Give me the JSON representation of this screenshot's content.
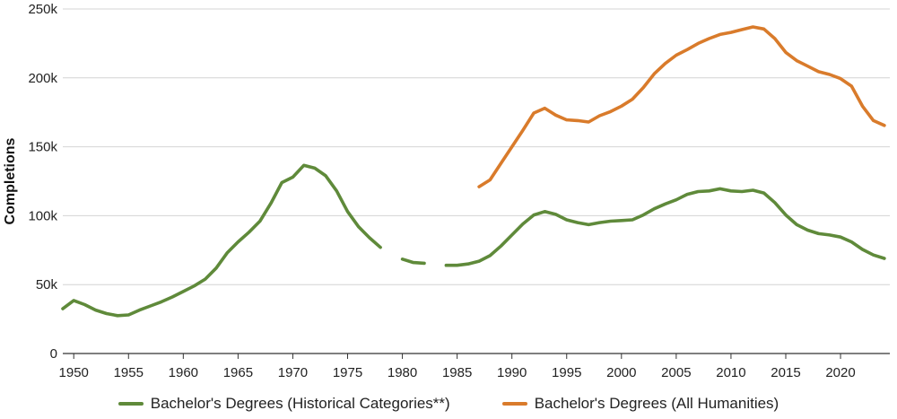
{
  "chart_data": {
    "type": "line",
    "ylabel": "Completions",
    "xlabel": "",
    "xlim": [
      1949,
      2024.5
    ],
    "ylim": [
      0,
      250000
    ],
    "x_ticks": [
      1950,
      1955,
      1960,
      1965,
      1970,
      1975,
      1980,
      1985,
      1990,
      1995,
      2000,
      2005,
      2010,
      2015,
      2020
    ],
    "x_tick_labels": [
      "1950",
      "1955",
      "1960",
      "1965",
      "1970",
      "1975",
      "1980",
      "1985",
      "1990",
      "1995",
      "2000",
      "2005",
      "2010",
      "2015",
      "2020"
    ],
    "y_ticks": [
      0,
      50000,
      100000,
      150000,
      200000,
      250000
    ],
    "y_tick_labels": [
      "0",
      "50k",
      "100k",
      "150k",
      "200k",
      "250k"
    ],
    "grid": "horizontal",
    "legend_position": "bottom",
    "series": [
      {
        "name": "Bachelor's Degrees (Historical Categories**)",
        "color": "#5f8a3a",
        "x": [
          1949,
          1950,
          1951,
          1952,
          1953,
          1954,
          1955,
          1956,
          1957,
          1958,
          1959,
          1960,
          1961,
          1962,
          1963,
          1964,
          1965,
          1966,
          1967,
          1968,
          1969,
          1970,
          1971,
          1972,
          1973,
          1974,
          1975,
          1976,
          1977,
          1978,
          1979,
          1980,
          1981,
          1982,
          1983,
          1984,
          1985,
          1986,
          1987,
          1988,
          1989,
          1990,
          1991,
          1992,
          1993,
          1994,
          1995,
          1996,
          1997,
          1998,
          1999,
          2000,
          2001,
          2002,
          2003,
          2004,
          2005,
          2006,
          2007,
          2008,
          2009,
          2010,
          2011,
          2012,
          2013,
          2014,
          2015,
          2016,
          2017,
          2018,
          2019,
          2020,
          2021,
          2022,
          2023,
          2024
        ],
        "values": [
          32500,
          38500,
          35500,
          31500,
          29000,
          27500,
          28000,
          31500,
          34500,
          37500,
          41000,
          45000,
          49000,
          54000,
          62000,
          73000,
          81000,
          88000,
          96000,
          109000,
          124000,
          128000,
          136500,
          134500,
          129000,
          118000,
          103000,
          92000,
          84000,
          77000,
          null,
          68500,
          66000,
          65500,
          null,
          64000,
          64000,
          65000,
          67000,
          71000,
          78000,
          86000,
          94000,
          100500,
          103000,
          101000,
          97000,
          95000,
          93500,
          95000,
          96000,
          96500,
          97000,
          100500,
          105000,
          108500,
          111500,
          115500,
          117500,
          118000,
          119500,
          118000,
          117500,
          118500,
          116500,
          109500,
          100500,
          93500,
          89500,
          87000,
          86000,
          84500,
          81000,
          75500,
          71500,
          69000
        ]
      },
      {
        "name": "Bachelor's Degrees (All Humanities)",
        "color": "#d97b2b",
        "x": [
          1987,
          1988,
          1989,
          1990,
          1991,
          1992,
          1993,
          1994,
          1995,
          1996,
          1997,
          1998,
          1999,
          2000,
          2001,
          2002,
          2003,
          2004,
          2005,
          2006,
          2007,
          2008,
          2009,
          2010,
          2011,
          2012,
          2013,
          2014,
          2015,
          2016,
          2017,
          2018,
          2019,
          2020,
          2021,
          2022,
          2023,
          2024
        ],
        "values": [
          121000,
          126000,
          138000,
          150000,
          162000,
          174500,
          178000,
          173000,
          169500,
          169000,
          168000,
          172500,
          175500,
          179500,
          184500,
          193000,
          203000,
          210500,
          216500,
          220500,
          225000,
          228500,
          231500,
          233000,
          235000,
          237000,
          235500,
          228500,
          218500,
          212500,
          208500,
          204500,
          202500,
          199500,
          194000,
          179500,
          169000,
          165500
        ]
      }
    ]
  }
}
